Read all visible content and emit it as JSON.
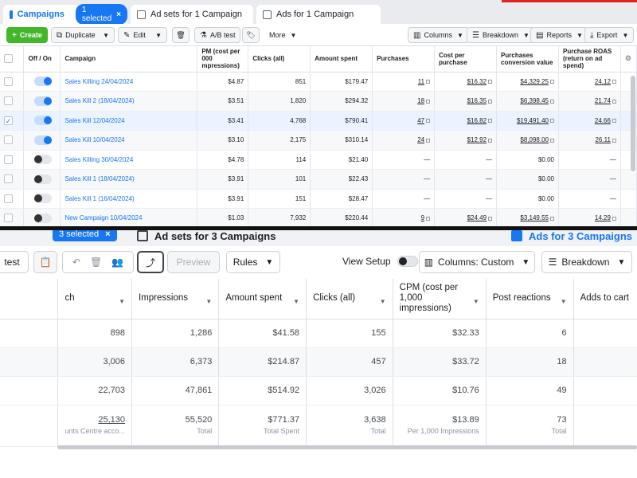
{
  "top": {
    "tabs": {
      "campaigns": "Campaigns",
      "selected_badge": "1 selected",
      "adsets": "Ad sets for 1 Campaign",
      "ads": "Ads for 1 Campaign"
    },
    "toolbar": {
      "create": "Create",
      "duplicate": "Duplicate",
      "edit": "Edit",
      "ab_test": "A/B test",
      "more": "More",
      "columns": "Columns",
      "breakdown": "Breakdown",
      "reports": "Reports",
      "export": "Export"
    },
    "headers": {
      "off_on": "Off / On",
      "campaign": "Campaign",
      "cpm": "PM (cost per 000 mpressions)",
      "clicks": "Clicks (all)",
      "amount_spent": "Amount spent",
      "purchases": "Purchases",
      "cost_per_purchase": "Cost per purchase",
      "purchases_conversion_value": "Purchases conversion value",
      "purchase_roas": "Purchase ROAS (return on ad spend)"
    },
    "rows": [
      {
        "campaign": "Sales Killing 24/04/2024",
        "on": true,
        "checked": false,
        "cpm": "$4.87",
        "clicks": "851",
        "spent": "$179.47",
        "purchases": "11",
        "cost": "$16.32",
        "value": "$4,329.25",
        "roas": "24.12"
      },
      {
        "campaign": "Sales Kill 2 (18/04/2024)",
        "on": true,
        "checked": false,
        "cpm": "$3.51",
        "clicks": "1,820",
        "spent": "$294.32",
        "purchases": "18",
        "cost": "$16.35",
        "value": "$6,398.45",
        "roas": "21.74"
      },
      {
        "campaign": "Sales Kill 12/04/2024",
        "on": true,
        "checked": true,
        "cpm": "$3.41",
        "clicks": "4,768",
        "spent": "$790.41",
        "purchases": "47",
        "cost": "$16.82",
        "value": "$19,491.40",
        "roas": "24.66"
      },
      {
        "campaign": "Sales Kill 10/04/2024",
        "on": true,
        "checked": false,
        "cpm": "$3.10",
        "clicks": "2,175",
        "spent": "$310.14",
        "purchases": "24",
        "cost": "$12.92",
        "value": "$8,098.00",
        "roas": "26.11"
      },
      {
        "campaign": "Sales Killing 30/04/2024",
        "on": false,
        "checked": false,
        "cpm": "$4.78",
        "clicks": "114",
        "spent": "$21.40",
        "purchases": "—",
        "cost": "—",
        "value": "$0.00",
        "roas": "—"
      },
      {
        "campaign": "Sales Kill 1 (18/04/2024)",
        "on": false,
        "checked": false,
        "cpm": "$3.91",
        "clicks": "101",
        "spent": "$22.43",
        "purchases": "—",
        "cost": "—",
        "value": "$0.00",
        "roas": "—"
      },
      {
        "campaign": "Sales Kill 1 (16/04/2024)",
        "on": false,
        "checked": false,
        "cpm": "$3.91",
        "clicks": "151",
        "spent": "$28.47",
        "purchases": "—",
        "cost": "—",
        "value": "$0.00",
        "roas": "—"
      },
      {
        "campaign": "New Campaign 10/04/2024",
        "on": false,
        "checked": false,
        "cpm": "$1.03",
        "clicks": "7,932",
        "spent": "$220.44",
        "purchases": "9",
        "cost": "$24.49",
        "value": "$3,149.55",
        "roas": "14.29"
      }
    ]
  },
  "bottom": {
    "tabs": {
      "selected_badge": "3 selected",
      "adsets": "Ad sets for 3 Campaigns",
      "ads": "Ads for 3 Campaigns"
    },
    "toolbar": {
      "test": "test",
      "preview": "Preview",
      "rules": "Rules",
      "view_setup": "View Setup",
      "columns": "Columns: Custom",
      "breakdown": "Breakdown"
    },
    "headers": {
      "reach": "ch",
      "impressions": "Impressions",
      "amount_spent": "Amount spent",
      "clicks": "Clicks (all)",
      "cpm": "CPM (cost per 1,000 impressions)",
      "post_reactions": "Post reactions",
      "adds_to_cart": "Adds to cart"
    },
    "rows": [
      {
        "reach": "898",
        "impressions": "1,286",
        "spent": "$41.58",
        "clicks": "155",
        "cpm": "$32.33",
        "reactions": "6"
      },
      {
        "reach": "3,006",
        "impressions": "6,373",
        "spent": "$214.87",
        "clicks": "457",
        "cpm": "$33.72",
        "reactions": "18"
      },
      {
        "reach": "22,703",
        "impressions": "47,861",
        "spent": "$514.92",
        "clicks": "3,026",
        "cpm": "$10.76",
        "reactions": "49"
      }
    ],
    "totals": {
      "reach": "25,130",
      "reach_sub": "unts Centre acco...",
      "impressions": "55,520",
      "impressions_sub": "Total",
      "spent": "$771.37",
      "spent_sub": "Total Spent",
      "clicks": "3,638",
      "clicks_sub": "Total",
      "cpm": "$13.89",
      "cpm_sub": "Per 1,000 Impressions",
      "reactions": "73",
      "reactions_sub": "Total"
    }
  }
}
